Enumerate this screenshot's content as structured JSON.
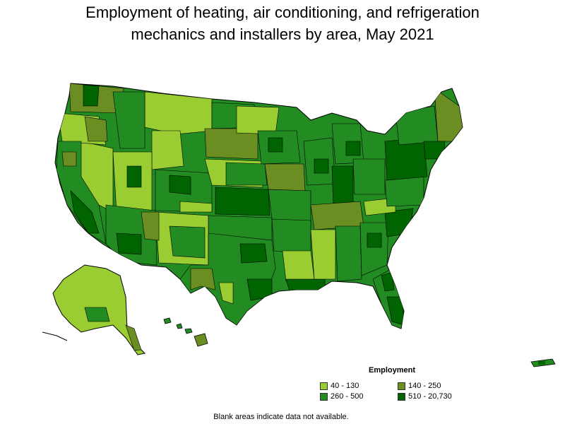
{
  "title_line1": "Employment of heating, air conditioning, and refrigeration",
  "title_line2": "mechanics and installers by area, May 2021",
  "legend": {
    "title": "Employment",
    "items": [
      {
        "label": "40 - 130",
        "color": "#9acd32"
      },
      {
        "label": "140 - 250",
        "color": "#6b8e23"
      },
      {
        "label": "260 - 500",
        "color": "#228b22"
      },
      {
        "label": "510 - 20,730",
        "color": "#006400"
      }
    ]
  },
  "note": "Blank areas indicate data not available.",
  "colors": {
    "border": "#000000",
    "background": "#ffffff"
  }
}
